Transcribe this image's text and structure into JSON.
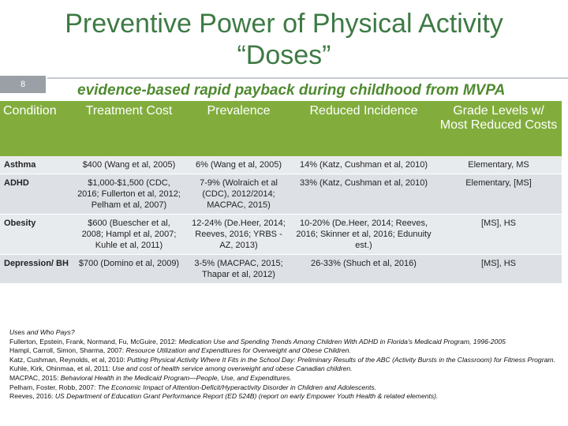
{
  "header": {
    "title_lines": [
      "Preventive Power of Physical Activity",
      "“Doses”"
    ],
    "slide_number": "8",
    "subtitle": "evidence-based rapid payback during childhood from MVPA"
  },
  "table": {
    "columns": [
      "Condition",
      "Treatment Cost",
      "Prevalence",
      "Reduced Incidence",
      "Grade Levels w/ Most Reduced Costs"
    ],
    "rows": [
      [
        "Asthma",
        "$400 (Wang et al, 2005)",
        "6% (Wang et al, 2005)",
        "14% (Katz, Cushman et al, 2010)",
        "Elementary, MS"
      ],
      [
        "ADHD",
        "$1,000-$1,500 (CDC, 2016; Fullerton et al, 2012; Pelham et al, 2007)",
        "7-9% (Wolraich et al (CDC), 2012/2014; MACPAC, 2015)",
        "33% (Katz, Cushman et al, 2010)",
        "Elementary, [MS]"
      ],
      [
        "Obesity",
        "$600 (Buescher et al, 2008; Hampl et al, 2007; Kuhle et al, 2011)",
        "12-24% (De.Heer, 2014; Reeves, 2016; YRBS - AZ, 2013)",
        "10-20% (De.Heer, 2014; Reeves, 2016; Skinner et al, 2016; Edunuity est.)",
        "[MS], HS"
      ],
      [
        "Depression/ BH",
        "$700 (Domino et al, 2009)",
        "3-5% (MACPAC, 2015; Thapar et al, 2012)",
        "26-33% (Shuch et al, 2016)",
        "[MS], HS"
      ]
    ]
  },
  "references": [
    {
      "authors": "",
      "title": "Uses and Who Pays?"
    },
    {
      "authors": "Fullerton, Epstein, Frank, Normand, Fu, McGuire, 2012: ",
      "title": "Medication Use and Spending Trends Among Children With ADHD in Florida's Medicaid Program, 1996-2005"
    },
    {
      "authors": "Hampl, Carroll, Simon, Sharma, 2007: ",
      "title": "Resource Utilization and Expenditures for Overweight and Obese Children."
    },
    {
      "authors": "Katz, Cushman, Reynolds, et al, 2010: ",
      "title": "Putting Physical Activity Where It Fits in the School Day: Preliminary Results of the ABC (Activity Bursts in the Classroom) for Fitness Program."
    },
    {
      "authors": "Kuhle, Kirk, Ohinmaa, et al, 2011: ",
      "title": "Use and cost of health service among overweight and obese Canadian children."
    },
    {
      "authors": "MACPAC, 2015: ",
      "title": "Behavioral Health in the Medicaid Program—People, Use, and Expenditures."
    },
    {
      "authors": "Pelham, Foster, Robb, 2007: ",
      "title": "The Economic Impact of Attention-Deficit/Hyperactivity Disorder in Children and Adolescents."
    },
    {
      "authors": "Reeves, 2016: ",
      "title": "US Department of Education Grant Performance Report (ED 524B) (report on early Empower Youth Health & related elements)."
    }
  ]
}
